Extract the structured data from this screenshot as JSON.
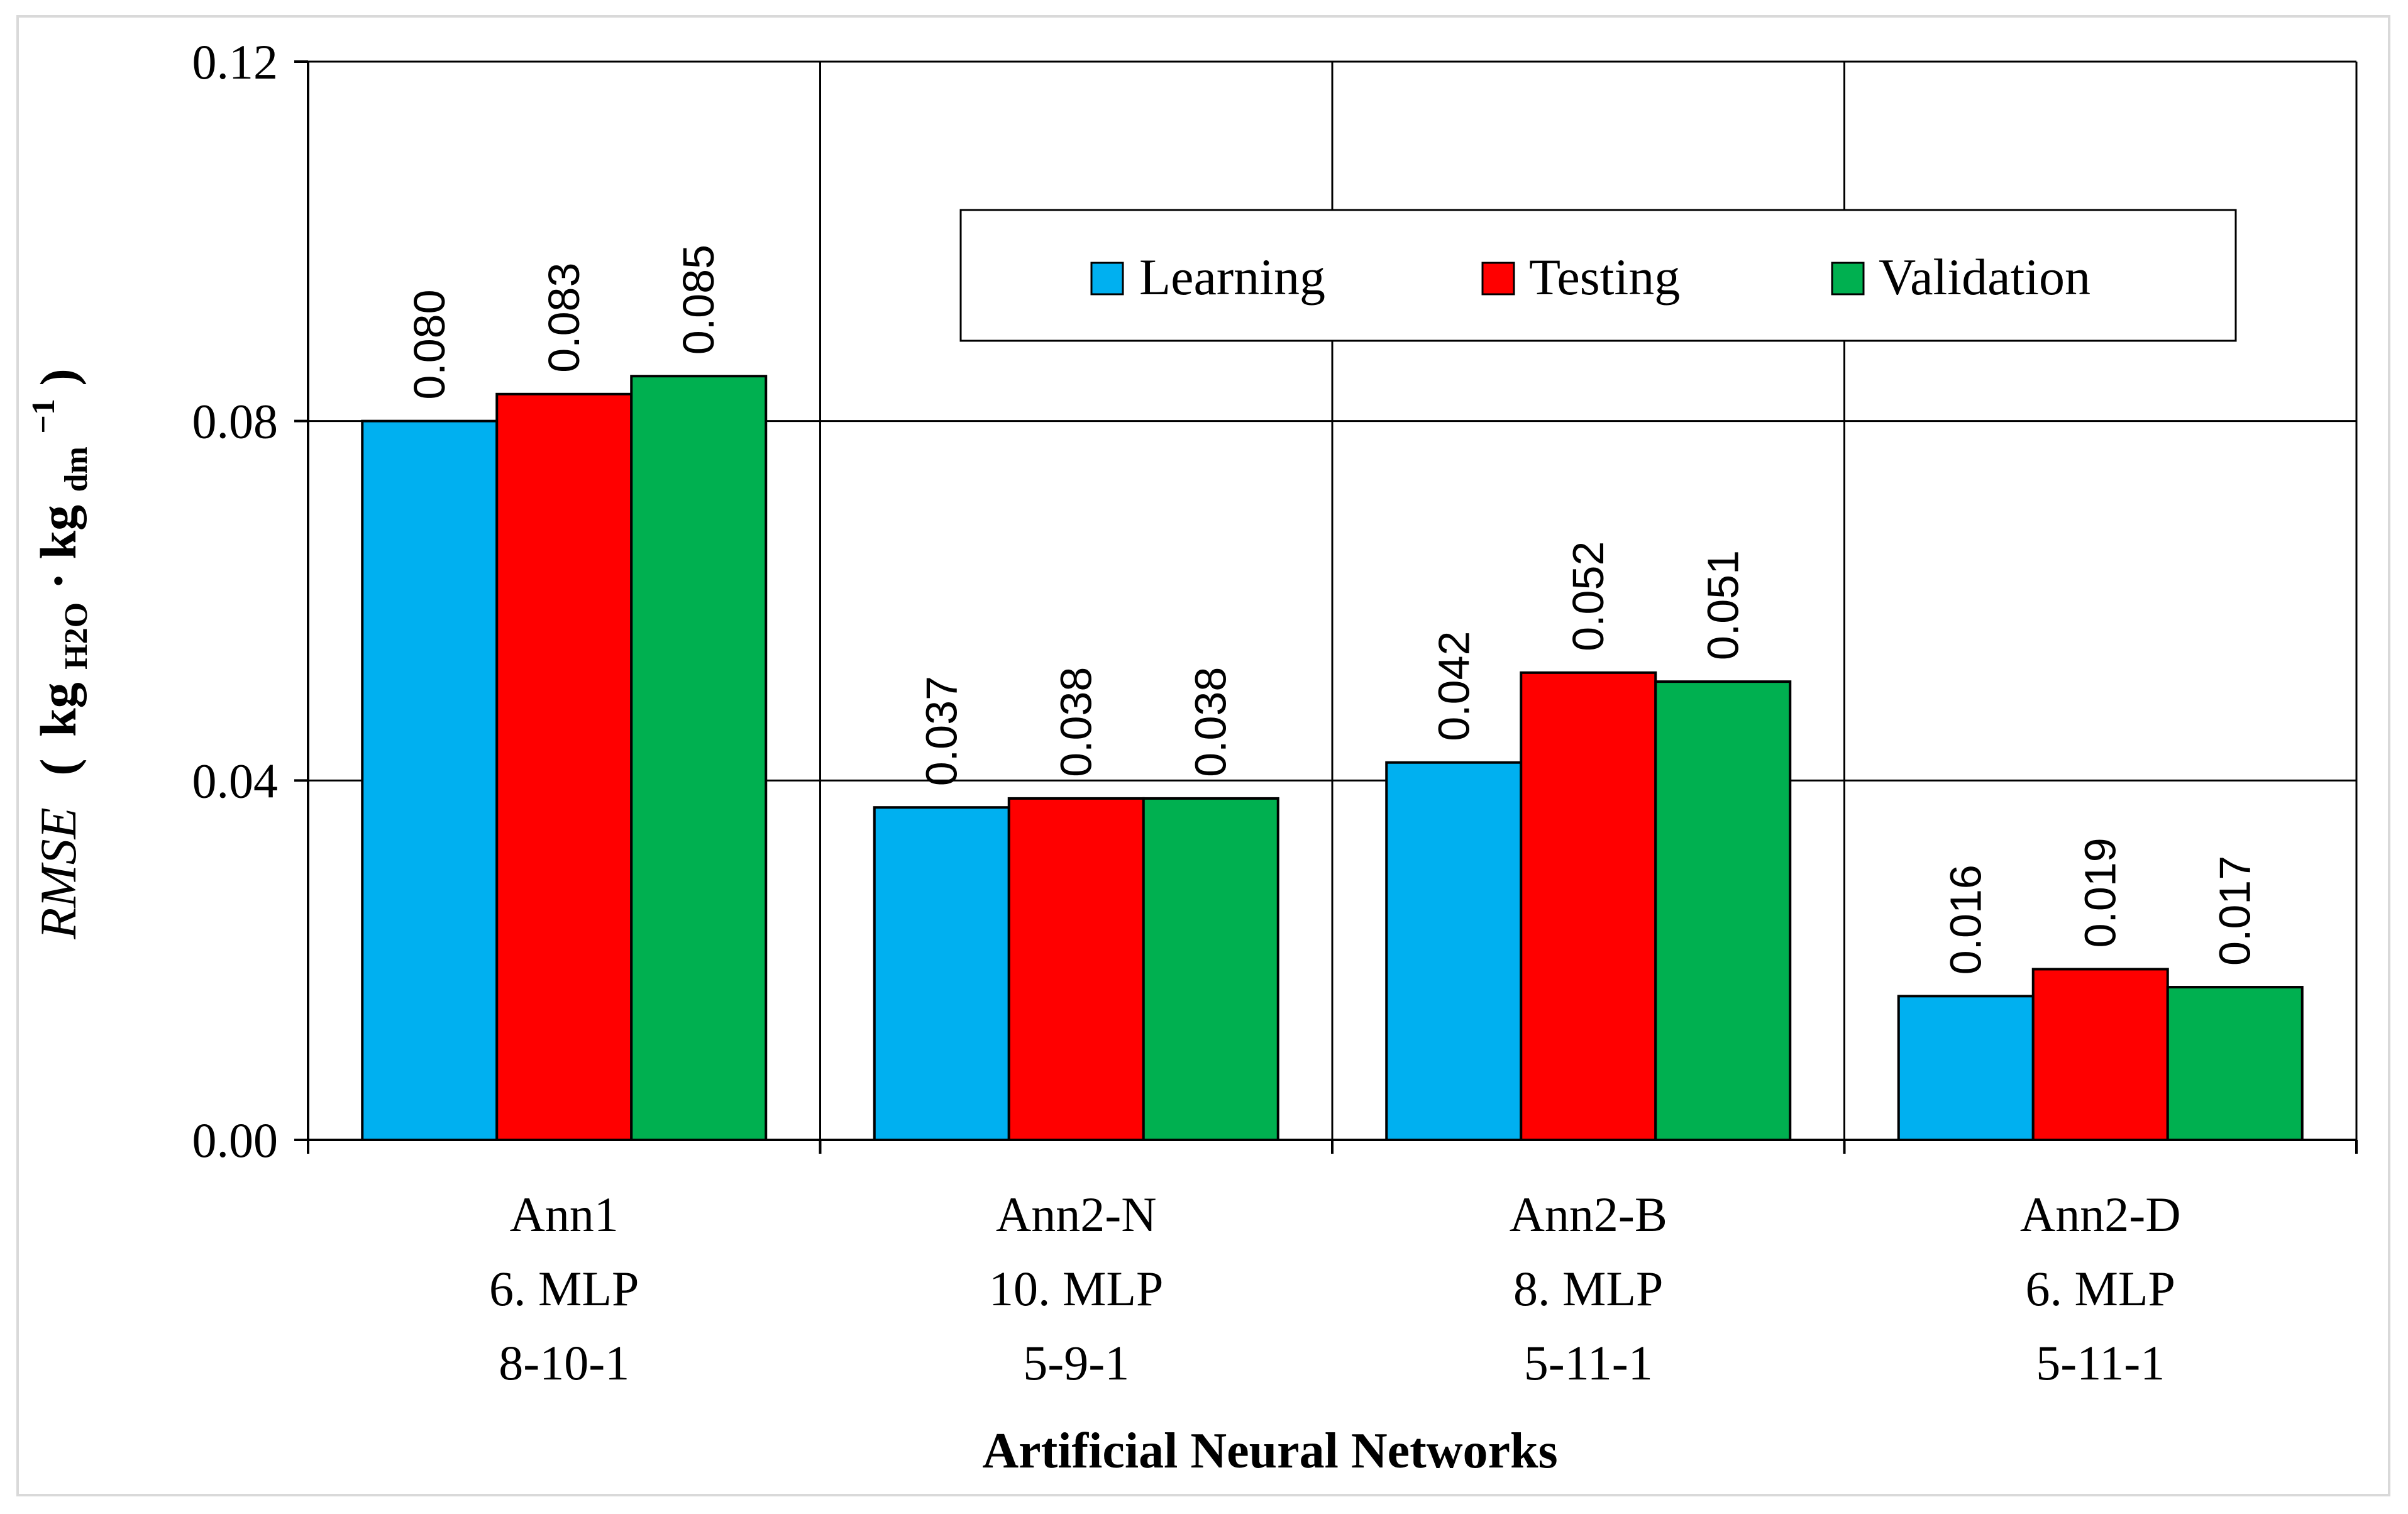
{
  "chart_data": {
    "type": "bar",
    "title": "",
    "xlabel": "Artificial Neural Networks",
    "ylabel": {
      "italic": "RMSE",
      "unit_open": "(",
      "unit_kg1": "kg",
      "unit_sub1": "H2O",
      "unit_dot": "·",
      "unit_kg2": "kg",
      "unit_sub2": "dm",
      "unit_sup": "−1",
      "unit_close": ")"
    },
    "ylim": [
      0,
      0.12
    ],
    "yticks": [
      {
        "value": 0.0,
        "label": "0.00"
      },
      {
        "value": 0.04,
        "label": "0.04"
      },
      {
        "value": 0.08,
        "label": "0.08"
      },
      {
        "value": 0.12,
        "label": "0.12"
      }
    ],
    "categories": [
      {
        "lines": [
          "Ann1",
          "6. MLP",
          "8-10-1"
        ]
      },
      {
        "lines": [
          "Ann2-N",
          "10. MLP",
          "5-9-1"
        ]
      },
      {
        "lines": [
          "Ann2-B",
          "8. MLP",
          "5-11-1"
        ]
      },
      {
        "lines": [
          "Ann2-D",
          "6. MLP",
          "5-11-1"
        ]
      }
    ],
    "series": [
      {
        "name": "Learning",
        "color": "#00b0f0",
        "values": [
          0.08,
          0.037,
          0.042,
          0.016
        ],
        "labels": [
          "0.080",
          "0.037",
          "0.042",
          "0.016"
        ]
      },
      {
        "name": "Testing",
        "color": "#ff0000",
        "values": [
          0.083,
          0.038,
          0.052,
          0.019
        ],
        "labels": [
          "0.083",
          "0.038",
          "0.052",
          "0.019"
        ]
      },
      {
        "name": "Validation",
        "color": "#00b050",
        "values": [
          0.085,
          0.038,
          0.051,
          0.017
        ],
        "labels": [
          "0.085",
          "0.038",
          "0.051",
          "0.017"
        ]
      }
    ],
    "grid": true,
    "legend_position": "top-right"
  }
}
